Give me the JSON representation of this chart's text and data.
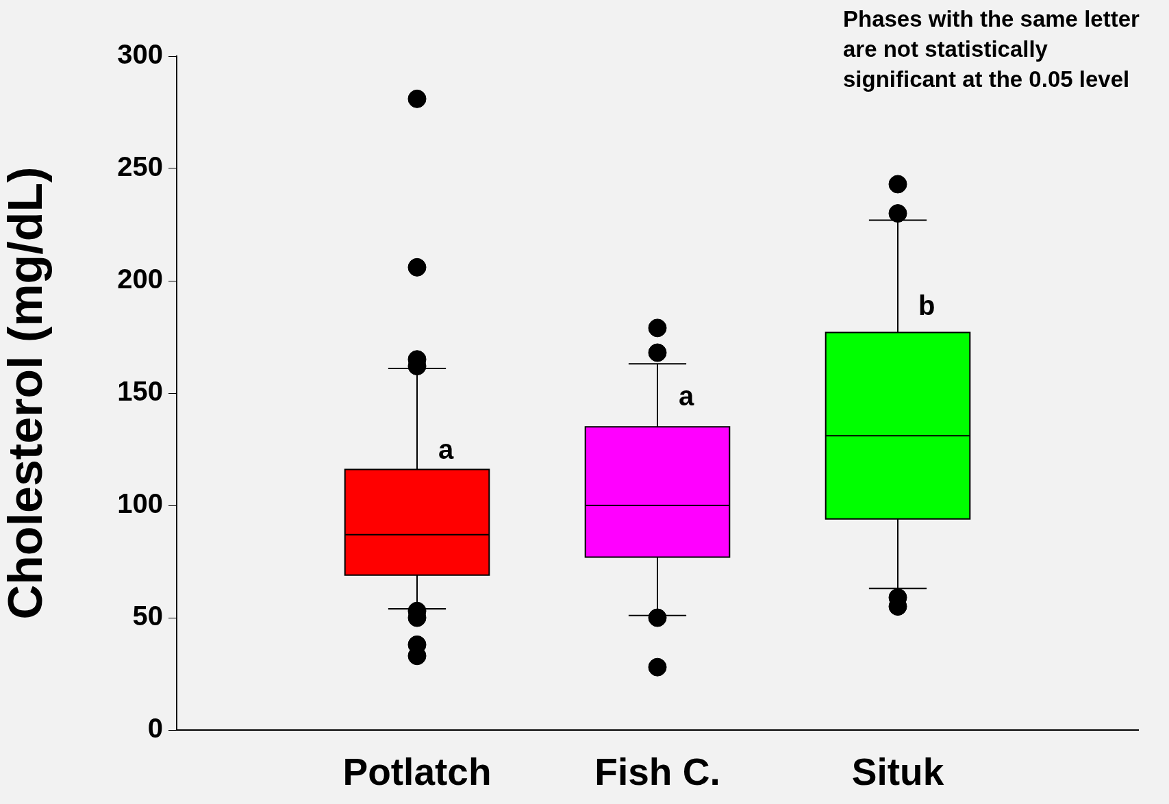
{
  "chart_data": {
    "type": "box",
    "ylabel": "Cholesterol (mg/dL)",
    "categories": [
      "Potlatch",
      "Fish C.",
      "Situk"
    ],
    "colors": [
      "#ff0000",
      "#ff00ff",
      "#00ff00"
    ],
    "boxes": [
      {
        "low": 54,
        "q1": 69,
        "median": 87,
        "q3": 116,
        "high": 161,
        "outliers": [
          281,
          206,
          165,
          162,
          53,
          50,
          38,
          33
        ]
      },
      {
        "low": 51,
        "q1": 77,
        "median": 100,
        "q3": 135,
        "high": 163,
        "outliers": [
          179,
          168,
          50,
          28
        ]
      },
      {
        "low": 63,
        "q1": 94,
        "median": 131,
        "q3": 177,
        "high": 227,
        "outliers": [
          243,
          230,
          59,
          55
        ]
      }
    ],
    "ylim": [
      0,
      300
    ],
    "yticks": [
      0,
      50,
      100,
      150,
      200,
      250,
      300
    ],
    "grid": false,
    "legend": false,
    "annotations": [
      {
        "text": "a",
        "x": "Potlatch",
        "y": 124
      },
      {
        "text": "a",
        "x": "Fish C.",
        "y": 148
      },
      {
        "text": "b",
        "x": "Situk",
        "y": 188
      },
      "Phases with the same letter are not statistically significant at the 0.05 level"
    ]
  }
}
